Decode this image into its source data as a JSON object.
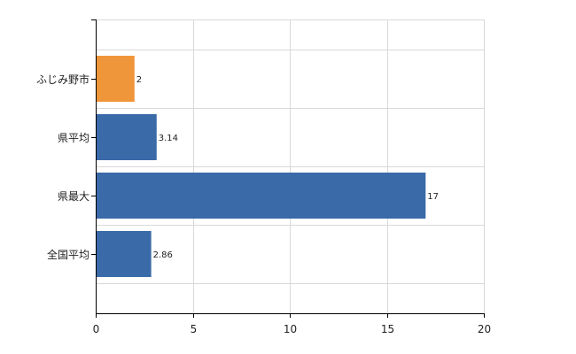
{
  "chart_data": {
    "type": "bar",
    "orientation": "horizontal",
    "categories": [
      "ふじみ野市",
      "県平均",
      "県最大",
      "全国平均"
    ],
    "values": [
      2,
      3.14,
      17,
      2.86
    ],
    "value_labels": [
      "2",
      "3.14",
      "17",
      "2.86"
    ],
    "bar_colors": [
      "#f0963a",
      "#3a6aa8",
      "#3a6aa8",
      "#3a6aa8"
    ],
    "xlim": [
      0,
      20
    ],
    "xticks": [
      0,
      5,
      10,
      15,
      20
    ],
    "title": "",
    "xlabel": "",
    "ylabel": "",
    "grid": true,
    "legend": "none"
  }
}
